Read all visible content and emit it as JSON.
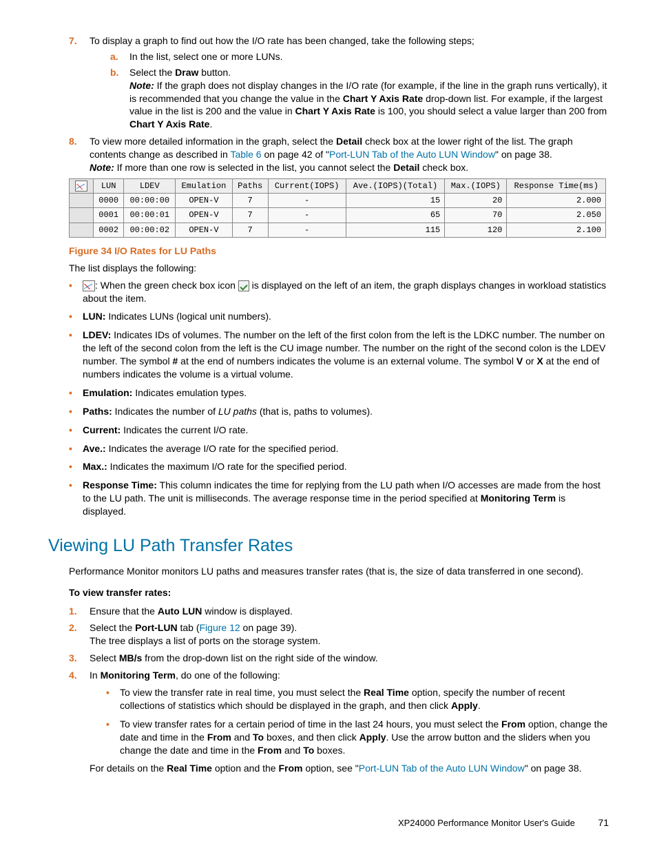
{
  "step7": {
    "num": "7.",
    "text_a": "To display a graph to find out how the I/O rate has been changed, take the following steps;",
    "a": {
      "num": "a.",
      "text": "In the list, select one or more LUNs."
    },
    "b": {
      "num": "b.",
      "text_before": "Select the ",
      "draw": "Draw",
      "text_after": " button.",
      "note_label": "Note:",
      "note_before": " If the graph does not display changes in the I/O rate (for example, if the line in the graph runs vertically), it is recommended that you change the value in the ",
      "cyar1": "Chart Y Axis Rate",
      "note_mid1": " drop-down list. For example, if the largest value in the list is 200 and the value in ",
      "cyar2": "Chart Y Axis Rate",
      "note_mid2": " is 100, you should select a value larger than 200 from ",
      "cyar3": "Chart Y Axis Rate",
      "note_end": "."
    }
  },
  "step8": {
    "num": "8.",
    "t1": "To view more detailed information in the graph, select the ",
    "detail1": "Detail",
    "t2": " check box at the lower right of the list. The graph contents change as described in ",
    "tablelink": "Table 6",
    "t3": " on page 42 of \"",
    "portlun": "Port-LUN Tab of the Auto LUN Window",
    "t4": "\" on page 38.",
    "note_label": "Note:",
    "note_t1": " If more than one row is selected in the list, you cannot select the ",
    "detail2": "Detail",
    "note_t2": " check box."
  },
  "table": {
    "headers": [
      "",
      "LUN",
      "LDEV",
      "Emulation",
      "Paths",
      "Current(IOPS)",
      "Ave.(IOPS)(Total)",
      "Max.(IOPS)",
      "Response Time(ms)"
    ],
    "rows": [
      [
        "",
        "0000",
        "00:00:00",
        "OPEN-V",
        "7",
        "-",
        "15",
        "20",
        "2.000"
      ],
      [
        "",
        "0001",
        "00:00:01",
        "OPEN-V",
        "7",
        "-",
        "65",
        "70",
        "2.050"
      ],
      [
        "",
        "0002",
        "00:00:02",
        "OPEN-V",
        "7",
        "-",
        "115",
        "120",
        "2.100"
      ]
    ]
  },
  "fig_caption": "Figure 34 I/O Rates for LU Paths",
  "list_intro": "The list displays the following:",
  "defs": {
    "icon": {
      "t1": ": When the green check box icon ",
      "t2": " is displayed on the left of an item, the graph displays changes in workload statistics about the item."
    },
    "lun": {
      "label": "LUN:",
      "text": " Indicates LUNs (logical unit numbers)."
    },
    "ldev": {
      "label": "LDEV:",
      "t1": " Indicates IDs of volumes. The number on the left of the first colon from the left is the LDKC number. The number on the left of the second colon from the left is the CU image number. The number on the right of the second colon is the LDEV number. The symbol ",
      "hash": "#",
      "t2": " at the end of numbers indicates the volume is an external volume. The symbol ",
      "v": "V",
      "or": " or ",
      "x": "X",
      "t3": " at the end of numbers indicates the volume is a virtual volume."
    },
    "emul": {
      "label": "Emulation:",
      "text": " Indicates emulation types."
    },
    "paths": {
      "label": "Paths:",
      "t1": " Indicates the number of ",
      "lup": "LU paths",
      "t2": " (that is, paths to volumes)."
    },
    "current": {
      "label": "Current:",
      "text": " Indicates the current I/O rate."
    },
    "ave": {
      "label": "Ave.:",
      "text": " Indicates the average I/O rate for the specified period."
    },
    "max": {
      "label": "Max.:",
      "text": " Indicates the maximum I/O rate for the specified period."
    },
    "resp": {
      "label": "Response Time:",
      "t1": " This column indicates the time for replying from the LU path when I/O accesses are made from the host to the LU path. The unit is milliseconds. The average response time in the period specified at ",
      "mt": "Monitoring Term",
      "t2": " is displayed."
    }
  },
  "section_title": "Viewing LU Path Transfer Rates",
  "section_intro": "Performance Monitor monitors LU paths and measures transfer rates (that is, the size of data transferred in one second).",
  "subhead": "To view transfer rates:",
  "tr1": {
    "num": "1.",
    "t1": "Ensure that the ",
    "al": "Auto LUN",
    "t2": " window is displayed."
  },
  "tr2": {
    "num": "2.",
    "t1": "Select the ",
    "pl": "Port-LUN",
    "t2": " tab (",
    "fig": "Figure 12",
    "t3": " on page 39).",
    "t4": "The tree displays a list of ports on the storage system."
  },
  "tr3": {
    "num": "3.",
    "t1": "Select ",
    "mbs": "MB/s",
    "t2": " from the drop-down list on the right side of the window."
  },
  "tr4": {
    "num": "4.",
    "t1": "In ",
    "mt": "Monitoring Term",
    "t2": ", do one of the following:",
    "b1": {
      "t1": "To view the transfer rate in real time, you must select the ",
      "rt": "Real Time",
      "t2": " option, specify the number of recent collections of statistics which should be displayed in the graph, and then click ",
      "apply": "Apply",
      "t3": "."
    },
    "b2": {
      "t1": "To view transfer rates for a certain period of time in the last 24 hours, you must select the ",
      "from": "From",
      "t2": " option, change the date and time in the ",
      "from2": "From",
      "and": " and ",
      "to": "To",
      "t3": " boxes, and then click ",
      "apply": "Apply",
      "t4": ". Use the arrow button and the sliders when you change the date and time in the ",
      "from3": "From",
      "and2": " and ",
      "to2": "To",
      "t5": " boxes."
    },
    "trail1": "For details on the ",
    "rt": "Real Time",
    "trail2": " option and the ",
    "from": "From",
    "trail3": " option, see \"",
    "link": "Port-LUN Tab of the Auto LUN Window",
    "trail4": "\" on page 38."
  },
  "footer": {
    "text": "XP24000 Performance Monitor User's Guide",
    "page": "71"
  }
}
